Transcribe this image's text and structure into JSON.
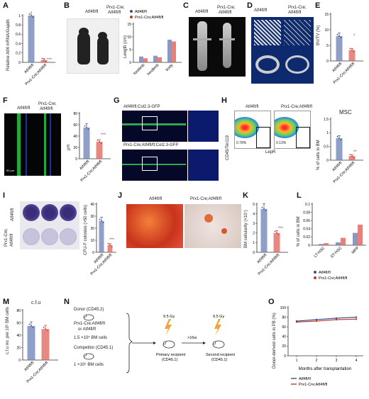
{
  "colors": {
    "ctrl": "#6a7fb5",
    "ko": "#e0605a",
    "ctrl_dark": "#3a4f8c",
    "ko_dark": "#c0392b"
  },
  "labels": {
    "A": "A",
    "B": "B",
    "C": "C",
    "D": "D",
    "E": "E",
    "F": "F",
    "G": "G",
    "H": "H",
    "I": "I",
    "J": "J",
    "K": "K",
    "L": "L",
    "M": "M",
    "N": "N",
    "O": "O"
  },
  "genotypes": {
    "ctrl": "Atf4fl/fl",
    "ko": "Prx1-Cre;Atf4fl/fl",
    "ko_split_1": "Prx1-Cre;",
    "ko_split_2": "Atf4fl/fl"
  },
  "signif": {
    "s3": "***",
    "s2": "**",
    "s1": "*"
  },
  "panelA": {
    "ylabel": "Relative Atf4 mRNA/Gapdh"
  },
  "panelB": {
    "ylabel": "Length (cm)",
    "xcats": [
      "forelimb",
      "hindlimb",
      "body"
    ]
  },
  "panelE": {
    "ylabel": "BV/TV (%)"
  },
  "panelF": {
    "ylabel": "μm",
    "scale": "50 μm"
  },
  "panelG": {
    "top": "Atf4fl/fl;Col2.3-GFP",
    "bottom": "Prx1-Cre;Atf4fl/fl;Col2.3-GFP"
  },
  "panelH": {
    "title": "MSC",
    "ylabel": "% of cells in BM",
    "xaxis": "LepR",
    "yaxis": "CD45/Ter119",
    "gate1": "0.78%",
    "gate2": "0.13%"
  },
  "panelI": {
    "ylabel": "CFU-F colonies (>50 cells)"
  },
  "panelK": {
    "ylabel": "BM cellularity (×10⁷)"
  },
  "panelL": {
    "ylabel": "% of cells in BM",
    "xcats": [
      "LT-HSC",
      "ST-HSC",
      "MPP"
    ]
  },
  "panelM": {
    "title": "c.f.u",
    "ylabel": "c.f.u no. per 10⁵ BM cells"
  },
  "panelN": {
    "donor": "Donor (CD45.2)",
    "donor_geno": "Prx1-Cre;Atf4fl/fl",
    "or": "or Atf4fl/fl",
    "cells1": "1.5 ×10⁵ BM cells",
    "competitor": "Competitor (CD45.1)",
    "cells2": "1 ×10⁵ BM cells",
    "dose": "9.5 Gy",
    "time": ">16w",
    "primary": "Primary recipient",
    "primary_cd": "(CD45.1)",
    "second": "Second recipient",
    "second_cd": "(CD45.1)"
  },
  "panelO": {
    "ylabel": "Donor-derived cells in PB (%)",
    "xlabel": "Months after transplantation"
  },
  "chart_data": [
    {
      "id": "A",
      "type": "bar",
      "categories": [
        "Atf4fl/fl",
        "Prx1-Cre;Atf4fl/fl"
      ],
      "values": [
        1.0,
        0.05
      ],
      "ylim": [
        0,
        1.0
      ],
      "yticks": [
        0,
        0.2,
        0.4,
        0.6,
        0.8,
        1.0
      ]
    },
    {
      "id": "B",
      "type": "bar",
      "categories": [
        "forelimb",
        "hindlimb",
        "body"
      ],
      "series": [
        {
          "name": "Atf4fl/fl",
          "values": [
            2.3,
            2.6,
            8.9
          ]
        },
        {
          "name": "Prx1-Cre;Atf4fl/fl",
          "values": [
            1.6,
            2.0,
            8.2
          ]
        }
      ],
      "ylim": [
        0,
        15
      ],
      "yticks": [
        0,
        5,
        10,
        15
      ]
    },
    {
      "id": "E",
      "type": "bar",
      "categories": [
        "Atf4fl/fl",
        "Prx1-Cre;Atf4fl/fl"
      ],
      "values": [
        8.0,
        3.5
      ],
      "ylim": [
        0,
        15
      ],
      "yticks": [
        0,
        5,
        10,
        15
      ]
    },
    {
      "id": "F",
      "type": "bar",
      "categories": [
        "Atf4fl/fl",
        "Prx1-Cre;Atf4fl/fl"
      ],
      "values": [
        55,
        30
      ],
      "ylim": [
        0,
        80
      ],
      "yticks": [
        0,
        20,
        40,
        60,
        80
      ]
    },
    {
      "id": "H",
      "type": "bar",
      "categories": [
        "Atf4fl/fl",
        "Prx1-Cre;Atf4fl/fl"
      ],
      "values": [
        0.8,
        0.15
      ],
      "ylim": [
        0,
        1.5
      ],
      "yticks": [
        0,
        0.5,
        1.0,
        1.5
      ]
    },
    {
      "id": "I",
      "type": "bar",
      "categories": [
        "Atf4fl/fl",
        "Prx1-Cre;Atf4fl/fl"
      ],
      "values": [
        26,
        6
      ],
      "ylim": [
        0,
        40
      ],
      "yticks": [
        0,
        10,
        20,
        30,
        40
      ]
    },
    {
      "id": "K",
      "type": "bar",
      "categories": [
        "Atf4fl/fl",
        "Prx1-Cre;Atf4fl/fl"
      ],
      "values": [
        4.5,
        2.0
      ],
      "ylim": [
        0,
        5
      ],
      "yticks": [
        0,
        1,
        2,
        3,
        4,
        5
      ]
    },
    {
      "id": "L",
      "type": "bar",
      "categories": [
        "LT-HSC",
        "ST-HSC",
        "MPP"
      ],
      "series": [
        {
          "name": "Atf4fl/fl",
          "values": [
            0.003,
            0.007,
            0.03
          ]
        },
        {
          "name": "Prx1-Cre;Atf4fl/fl",
          "values": [
            0.005,
            0.018,
            0.05
          ]
        }
      ],
      "ylim": [
        0,
        0.1
      ],
      "yticks": [
        0,
        0.02,
        0.04,
        0.06,
        0.08,
        0.1
      ]
    },
    {
      "id": "M",
      "type": "bar",
      "categories": [
        "Atf4fl/fl",
        "Prx1-Cre;Atf4fl/fl"
      ],
      "values": [
        55,
        50
      ],
      "ylim": [
        0,
        80
      ],
      "yticks": [
        0,
        20,
        40,
        60,
        80
      ]
    },
    {
      "id": "O",
      "type": "line",
      "x": [
        1,
        2,
        3,
        4
      ],
      "series": [
        {
          "name": "Atf4fl/fl",
          "values": [
            72,
            75,
            78,
            80
          ]
        },
        {
          "name": "Prx1-Cre;Atf4fl/fl",
          "values": [
            70,
            72,
            75,
            76
          ]
        }
      ],
      "ylim": [
        0,
        100
      ],
      "yticks": [
        0,
        20,
        40,
        60,
        80,
        100
      ],
      "xticks": [
        1,
        2,
        3,
        4
      ]
    }
  ]
}
